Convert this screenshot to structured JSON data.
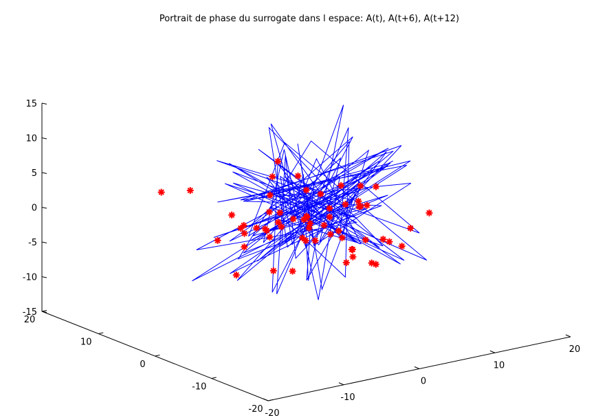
{
  "chart_data": {
    "type": "line",
    "projection": "3d",
    "title": "Portrait de phase du surrogate dans l espace: A(t), A(t+6), A(t+12)",
    "xlabel": "",
    "ylabel": "",
    "zlabel": "",
    "xlim": [
      -20,
      20
    ],
    "ylim": [
      -20,
      20
    ],
    "zlim": [
      -15,
      15
    ],
    "x_ticks": [
      "-20",
      "-10",
      "0",
      "10",
      "20"
    ],
    "y_ticks": [
      "-20",
      "-10",
      "0",
      "10",
      "20"
    ],
    "z_ticks": [
      "-15",
      "-10",
      "-5",
      "0",
      "5",
      "10",
      "15"
    ],
    "grid": false,
    "series": [
      {
        "style": "line",
        "color": "#0000ff",
        "x": [
          0,
          4.2,
          -3.1,
          6.5,
          -8.2,
          2.4,
          -1.3,
          9.1,
          -5.6,
          3.3,
          -7.4,
          1.8,
          5.7,
          -2.6,
          -9.3,
          4.9,
          0.6,
          -4.4,
          7.8,
          -6.1,
          2.2,
          -0.9,
          10.6,
          -3.8,
          6.1,
          -7.9,
          1.1,
          -5.2,
          8.4,
          -1.7,
          3.9,
          -10.1,
          5.3,
          -2.9,
          0.3,
          7.2,
          -6.8,
          4.4,
          -4.1,
          2.9,
          -8.8,
          6.9,
          -0.4,
          -3.5,
          9.6,
          -7.1,
          1.6,
          -2.2,
          5.1,
          -11.4,
          3.6,
          -5.9,
          8.8,
          0.9,
          -6.4,
          4.7,
          -1.1,
          11.2,
          -4.8,
          2.6,
          -9.7,
          6.3,
          -3.3,
          0.7,
          7.5,
          -8.6,
          3.1,
          -0.2,
          -5.5,
          9.9,
          -2.4,
          4.1,
          -7.6,
          1.4,
          6.6,
          -4.3,
          -1.6,
          8.1,
          -6.9,
          2.8,
          -3.9,
          5.5,
          -10.8,
          0.1,
          7.9,
          -5.1,
          3.7,
          -2.8,
          9.3,
          -6.2,
          1.2,
          -8.4,
          4.6,
          -0.6,
          6.8,
          -4.9,
          2.1,
          -7.3,
          10.2,
          -3.2,
          5.9,
          -1.9,
          -6.6,
          3.4,
          8.6,
          -9.1,
          0.4,
          -2.1,
          6.2,
          -5.8,
          4.3
        ],
        "y": [
          0,
          -5.2,
          7.1,
          1.6,
          -3.8,
          9.4,
          -6.7,
          2.3,
          4.8,
          -8.9,
          0.7,
          -2.5,
          6.4,
          -7.3,
          3.1,
          -0.9,
          8.2,
          -4.6,
          1.9,
          -9.8,
          5.6,
          -1.4,
          -3.2,
          7.7,
          -6.1,
          2.8,
          -0.3,
          9.9,
          -5.4,
          3.6,
          -8.1,
          1.2,
          6.9,
          -2.8,
          -7.6,
          4.1,
          0.5,
          -10.3,
          8.6,
          -3.9,
          2.4,
          -6.3,
          5.2,
          -1.1,
          7.4,
          -8.7,
          3.8,
          0.9,
          -4.9,
          6.1,
          -2.2,
          9.1,
          -7.1,
          1.5,
          4.6,
          -5.9,
          10.8,
          -0.7,
          -3.4,
          8.3,
          -6.6,
          2.1,
          -9.2,
          5.9,
          -1.8,
          3.3,
          -4.2,
          7.9,
          -8.4,
          0.2,
          6.6,
          -2.9,
          -5.7,
          9.6,
          -3.6,
          1.7,
          -7.9,
          4.4,
          -0.5,
          8.8,
          -6.2,
          2.6,
          -3.1,
          5.1,
          -9.6,
          0.8,
          7.1,
          -4.4,
          3.9,
          -1.6,
          -8.3,
          6.3,
          -2.4,
          10.1,
          -5.1,
          1.3,
          -6.8,
          4.9,
          -0.1,
          7.6,
          -9.4,
          2.9,
          -3.7,
          5.8,
          -1.9,
          8.4,
          -7.2,
          0.6,
          4.2,
          -5.5,
          3.2
        ],
        "z": [
          0,
          6.1,
          -4.3,
          8.2,
          -9.1,
          2.7,
          -1.9,
          5.4,
          -6.8,
          3.9,
          -2.6,
          7.5,
          -8.3,
          1.4,
          4.6,
          -5.7,
          9.3,
          -3.1,
          0.8,
          -7.2,
          6.9,
          -4.8,
          2.1,
          -0.5,
          8.7,
          -9.6,
          3.4,
          -1.2,
          5.9,
          -6.4,
          7.8,
          -2.9,
          0.3,
          -8.9,
          4.8,
          -3.6,
          9.8,
          -5.3,
          1.7,
          -0.9,
          6.4,
          -7.7,
          2.9,
          -4.1,
          10.2,
          -6.1,
          3.2,
          -1.8,
          7.1,
          -9.9,
          0.9,
          5.2,
          -3.4,
          8.9,
          -7.4,
          1.1,
          -2.3,
          6.6,
          -5.1,
          4.3,
          -8.1,
          9.4,
          -0.2,
          2.4,
          -6.9,
          7.3,
          -4.6,
          1.9,
          -1.4,
          5.7,
          -9.3,
          3.7,
          -2.1,
          8.1,
          -5.9,
          0.5,
          -7.1,
          6.2,
          -3.3,
          4.9,
          -10.4,
          2.2,
          -0.6,
          7.7,
          -6.3,
          3.1,
          -1.7,
          9.1,
          -8.6,
          0.4,
          5.3,
          -4.4,
          2.6,
          -7.8,
          6.8,
          -2.7,
          1.6,
          -9.4,
          4.1,
          -0.8,
          8.4,
          -5.6,
          3.6,
          -1.1,
          7.2,
          -6.7,
          0.1,
          2.8,
          -3.8
        ]
      },
      {
        "style": "marker",
        "marker": "*",
        "color": "#ff0000",
        "x": [
          -11.2,
          -9.1,
          -5.2,
          -2.0,
          1.1,
          -1.1,
          -0.8,
          3.1,
          4.8,
          0.9,
          -3.4,
          -6.3,
          -0.3,
          -2.1,
          -4.4,
          -4.0,
          -1.6,
          4.0,
          7.9,
          -4.2,
          -4.9,
          -3.0,
          1.5,
          -1.0,
          -0.4,
          -1.9,
          0.1,
          1.1,
          1.6,
          1.9,
          4.6,
          0.3,
          3.5,
          -1.4,
          -2.2,
          3.1,
          0.6,
          -1.6,
          2.0,
          -0.6,
          -3.1,
          -3.8,
          4.4,
          3.5,
          -6.8,
          5.6,
          -0.6,
          3.2,
          10.4,
          6.4,
          -6.0,
          6.8,
          -3.4,
          -3.2,
          -7.4,
          -6.9,
          -10.7,
          4.2,
          5.4,
          1.1
        ],
        "y": [
          11.8,
          9.5,
          0.0,
          3.5,
          -9.7,
          -7.4,
          -1.5,
          -8.3,
          -1.8,
          -5.7,
          -1.1,
          5.1,
          0.7,
          -0.2,
          1.8,
          4.6,
          -5.1,
          -1.7,
          -5.2,
          8.7,
          1.0,
          2.1,
          -3.0,
          -0.3,
          0.7,
          -1.4,
          -3.0,
          -4.3,
          2.8,
          -6.8,
          -2.3,
          -6.7,
          -3.4,
          -0.3,
          4.2,
          -9.4,
          -1.2,
          -0.3,
          -2.5,
          -2.2,
          4.0,
          7.0,
          1.3,
          -6.5,
          -1.5,
          -2.1,
          5.0,
          1.3,
          -6.7,
          0.1,
          4.7,
          -8.2,
          1.0,
          -0.7,
          2.3,
          7.6,
          -2.2,
          -4.8,
          7.7,
          9.9
        ],
        "z": [
          1.0,
          1.5,
          -7.9,
          6.0,
          -5.3,
          -5.3,
          -4.1,
          -2.6,
          -0.4,
          -4.4,
          -0.5,
          -9.9,
          -1.4,
          5.1,
          -0.2,
          -3.5,
          1.9,
          -6.4,
          -5.7,
          -2.9,
          2.6,
          -2.1,
          3.8,
          -1.1,
          -4.9,
          3.4,
          -2.9,
          1.6,
          -4.2,
          -2.9,
          2.8,
          -5.0,
          1.2,
          -1.3,
          3.6,
          -2.6,
          -2.3,
          -3.9,
          -4.0,
          2.8,
          -3.9,
          -5.1,
          -4.8,
          4.3,
          -2.2,
          -0.3,
          -2.2,
          -2.5,
          -1.0,
          -1.3,
          -3.1,
          -1.9,
          -2.3,
          -8.2,
          -1.6,
          -5.6,
          -2.5,
          -7.4,
          -6.0,
          -6.5
        ]
      }
    ]
  }
}
